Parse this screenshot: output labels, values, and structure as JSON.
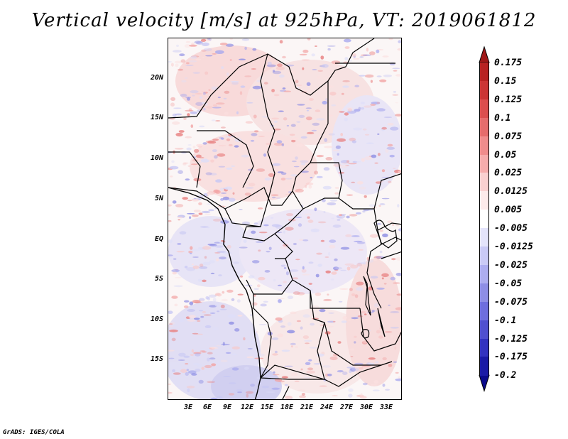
{
  "title": "Vertical velocity [m/s] at 925hPa, VT: 2019061812",
  "footer": "GrADS: IGES/COLA",
  "map": {
    "lat_labels": [
      "20N",
      "15N",
      "10N",
      "5N",
      "EQ",
      "5S",
      "10S",
      "15S"
    ],
    "lon_labels": [
      "3E",
      "6E",
      "9E",
      "12E",
      "15E",
      "18E",
      "21E",
      "24E",
      "27E",
      "30E",
      "33E"
    ]
  },
  "colorbar": {
    "labels": [
      "0.175",
      "0.15",
      "0.125",
      "0.1",
      "0.075",
      "0.05",
      "0.025",
      "0.0125",
      "0.005",
      "-0.005",
      "-0.0125",
      "-0.025",
      "-0.05",
      "-0.075",
      "-0.1",
      "-0.125",
      "-0.175",
      "-0.2"
    ],
    "colors": [
      "#a01818",
      "#b82222",
      "#cc3434",
      "#dc4e4e",
      "#e66c6c",
      "#f08c8c",
      "#f6acac",
      "#fad0d0",
      "#fdeaea",
      "#ffffff",
      "#e4e4fb",
      "#cacaf6",
      "#adadf0",
      "#8e8ee6",
      "#6e6ede",
      "#5050d0",
      "#3232c0",
      "#1a1aa6",
      "#0a0a8c"
    ]
  }
}
